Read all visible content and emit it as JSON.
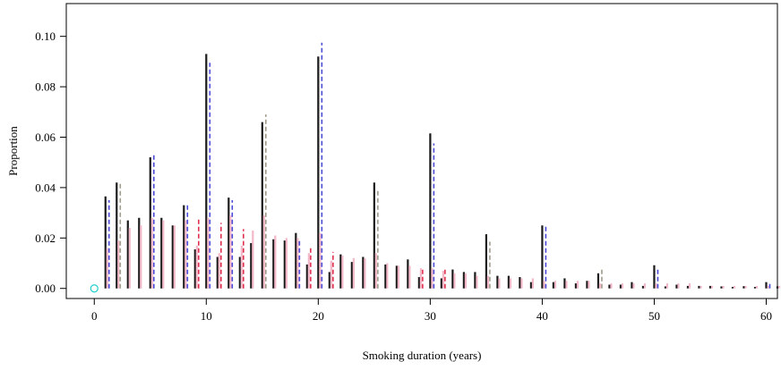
{
  "chart_data": {
    "type": "bar",
    "xlabel": "Smoking duration (years)",
    "ylabel": "Proportion",
    "xlim": [
      -2.5,
      61
    ],
    "ylim": [
      -0.004,
      0.113
    ],
    "grid": false,
    "legend": "none",
    "x_ticks": [
      0,
      10,
      20,
      30,
      40,
      50,
      60
    ],
    "x_tick_labels": [
      "0",
      "10",
      "20",
      "30",
      "40",
      "50",
      "60"
    ],
    "y_ticks": [
      0,
      0.02,
      0.04,
      0.06,
      0.08,
      0.1
    ],
    "y_tick_labels": [
      "0.00",
      "0.02",
      "0.04",
      "0.06",
      "0.08",
      "0.10"
    ],
    "zero_marker": {
      "x": 0,
      "y": 0,
      "color": "#22cccc"
    },
    "x": [
      1,
      2,
      3,
      4,
      5,
      6,
      7,
      8,
      9,
      10,
      11,
      12,
      13,
      14,
      15,
      16,
      17,
      18,
      19,
      20,
      21,
      22,
      23,
      24,
      25,
      26,
      27,
      28,
      29,
      30,
      31,
      32,
      33,
      34,
      35,
      36,
      37,
      38,
      39,
      40,
      41,
      42,
      43,
      44,
      45,
      46,
      47,
      48,
      49,
      50,
      51,
      52,
      53,
      54,
      55,
      56,
      57,
      58,
      59,
      60,
      61
    ],
    "series": [
      {
        "color": "#1a1a1a",
        "dash": "solid",
        "values": [
          0.0365,
          0.042,
          0.027,
          0.028,
          0.052,
          0.028,
          0.025,
          0.033,
          0.0155,
          0.093,
          0.0125,
          0.036,
          0.0125,
          0.018,
          0.066,
          0.0195,
          0.019,
          0.022,
          0.0095,
          0.092,
          0.0065,
          0.0135,
          0.0105,
          0.0125,
          0.042,
          0.0095,
          0.009,
          0.0115,
          0.0045,
          0.0615,
          0.004,
          0.0075,
          0.0065,
          0.0065,
          0.0215,
          0.005,
          0.005,
          0.0045,
          0.0025,
          0.025,
          0.0025,
          0.004,
          0.002,
          0.003,
          0.006,
          0.0015,
          0.0015,
          0.0025,
          0.001,
          0.0092,
          0.0008,
          0.0015,
          0.001,
          0.001,
          0.001,
          0.0008,
          0.0006,
          0.0009,
          0.0006,
          0.0025,
          0.0008
        ]
      },
      {
        "color": "#f2b8c8",
        "dash": "solid",
        "values": [
          0.016,
          0.019,
          0.024,
          0.025,
          0.028,
          0.027,
          0.025,
          0.027,
          0.017,
          0.028,
          0.014,
          0.029,
          0.017,
          0.023,
          0.029,
          0.021,
          0.02,
          0.02,
          0.014,
          0.022,
          0.011,
          0.013,
          0.012,
          0.012,
          0.014,
          0.01,
          0.009,
          0.009,
          0.008,
          0.008,
          0.007,
          0.006,
          0.006,
          0.005,
          0.005,
          0.004,
          0.004,
          0.004,
          0.004,
          0.003,
          0.003,
          0.003,
          0.003,
          0.003,
          0.002,
          0.002,
          0.002,
          0.002,
          0.002,
          0.002,
          0.002,
          0.002,
          0.002,
          0.001,
          0.001,
          0.001,
          0.001,
          0.001,
          0.001,
          0.001,
          0.001
        ]
      },
      {
        "color": "#4a4ad8",
        "dash": "dashed",
        "values": [
          0.035,
          0,
          0,
          0,
          0.053,
          0,
          0,
          0.033,
          0,
          0.0895,
          0,
          0.035,
          0,
          0,
          0,
          0,
          0,
          0.019,
          0,
          0.0975,
          0,
          0,
          0,
          0,
          0,
          0,
          0,
          0,
          0,
          0.0575,
          0,
          0,
          0,
          0,
          0,
          0,
          0,
          0,
          0,
          0.0255,
          0,
          0,
          0,
          0,
          0,
          0,
          0,
          0,
          0,
          0.0075,
          0,
          0,
          0,
          0,
          0,
          0,
          0,
          0,
          0,
          0.0025,
          0
        ]
      },
      {
        "color": "#a09a8a",
        "dash": "dashed",
        "values": [
          0,
          0.0415,
          0,
          0,
          0,
          0,
          0,
          0,
          0,
          0,
          0,
          0,
          0,
          0,
          0.069,
          0,
          0,
          0,
          0,
          0,
          0,
          0,
          0,
          0,
          0.039,
          0,
          0,
          0,
          0,
          0,
          0,
          0,
          0,
          0,
          0.0185,
          0,
          0,
          0,
          0,
          0,
          0,
          0,
          0,
          0,
          0.0085,
          0,
          0,
          0,
          0,
          0,
          0,
          0,
          0,
          0,
          0,
          0,
          0,
          0,
          0,
          0,
          0
        ]
      },
      {
        "color": "#e0304e",
        "dash": "dashed",
        "values": [
          0,
          0,
          0,
          0,
          0,
          0,
          0,
          0,
          0.028,
          0,
          0.026,
          0,
          0.0235,
          0,
          0,
          0,
          0,
          0,
          0.0165,
          0,
          0.0145,
          0,
          0,
          0,
          0,
          0,
          0,
          0,
          0.0085,
          0,
          0.0075,
          0,
          0,
          0,
          0,
          0,
          0,
          0,
          0,
          0,
          0,
          0,
          0,
          0,
          0,
          0,
          0,
          0,
          0,
          0,
          0,
          0,
          0,
          0,
          0,
          0,
          0,
          0,
          0,
          0,
          0
        ]
      }
    ]
  }
}
